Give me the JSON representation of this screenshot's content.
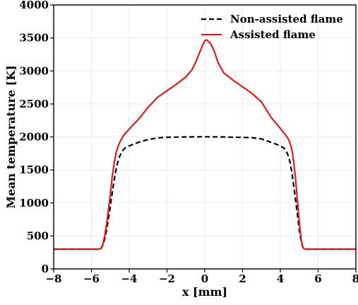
{
  "chart_data": {
    "type": "line",
    "title": "",
    "xlabel": "x [mm]",
    "ylabel": "Mean temperature [K]",
    "xlim": [
      -8,
      8
    ],
    "ylim": [
      0,
      4000
    ],
    "xticks": [
      -8,
      -6,
      -4,
      -2,
      0,
      2,
      4,
      6,
      8
    ],
    "yticks": [
      0,
      500,
      1000,
      1500,
      2000,
      2500,
      3000,
      3500,
      4000
    ],
    "xtick_labels": [
      "−8",
      "−6",
      "−4",
      "−2",
      "0",
      "2",
      "4",
      "6",
      "8"
    ],
    "ytick_labels": [
      "0",
      "500",
      "1000",
      "1500",
      "2000",
      "2500",
      "3000",
      "3500",
      "4000"
    ],
    "grid": true,
    "legend_position": "top-right",
    "series": [
      {
        "name": "Non-assisted flame",
        "color": "#000000",
        "dash": "dashed",
        "x": [
          -8,
          -5.6,
          -5.5,
          -5.4,
          -5.3,
          -5.2,
          -5.1,
          -5.0,
          -4.9,
          -4.8,
          -4.7,
          -4.6,
          -4.5,
          -4.4,
          -4.3,
          -4.2,
          -4.0,
          -3.5,
          -3.0,
          -2.5,
          -2.0,
          -1.0,
          0,
          1.0,
          2.0,
          2.5,
          3.0,
          3.5,
          4.0,
          4.2,
          4.3,
          4.4,
          4.5,
          4.6,
          4.7,
          4.8,
          4.9,
          5.0,
          5.1,
          5.2,
          5.3,
          5.4,
          5.5,
          5.6,
          8
        ],
        "y": [
          300,
          300,
          310,
          360,
          450,
          580,
          760,
          950,
          1150,
          1340,
          1500,
          1620,
          1710,
          1770,
          1810,
          1835,
          1865,
          1920,
          1960,
          1985,
          1995,
          2000,
          2002,
          2000,
          1993,
          1988,
          1970,
          1920,
          1865,
          1830,
          1790,
          1730,
          1630,
          1480,
          1280,
          1060,
          830,
          600,
          420,
          320,
          300,
          300,
          300,
          300,
          300
        ]
      },
      {
        "name": "Assisted flame",
        "color": "#e31a1c",
        "dash": "solid",
        "x": [
          -8,
          -5.6,
          -5.5,
          -5.4,
          -5.3,
          -5.2,
          -5.1,
          -5.0,
          -4.9,
          -4.8,
          -4.7,
          -4.6,
          -4.5,
          -4.4,
          -4.3,
          -4.2,
          -4.0,
          -3.5,
          -3.0,
          -2.5,
          -2.0,
          -1.5,
          -1.0,
          -0.7,
          -0.5,
          -0.3,
          -0.1,
          0,
          0.1,
          0.3,
          0.5,
          0.7,
          1.0,
          1.5,
          2.0,
          2.5,
          3.0,
          3.5,
          4.0,
          4.3,
          4.4,
          4.5,
          4.6,
          4.7,
          4.8,
          4.9,
          5.0,
          5.1,
          5.2,
          5.3,
          5.4,
          5.6,
          8
        ],
        "y": [
          300,
          300,
          310,
          370,
          500,
          680,
          900,
          1140,
          1400,
          1600,
          1760,
          1850,
          1920,
          1975,
          2020,
          2055,
          2120,
          2270,
          2450,
          2600,
          2700,
          2800,
          2910,
          3010,
          3120,
          3260,
          3400,
          3460,
          3470,
          3420,
          3300,
          3130,
          2970,
          2860,
          2760,
          2660,
          2530,
          2300,
          2130,
          2020,
          1980,
          1920,
          1820,
          1640,
          1380,
          1050,
          720,
          450,
          320,
          300,
          300,
          300,
          300
        ]
      }
    ]
  }
}
